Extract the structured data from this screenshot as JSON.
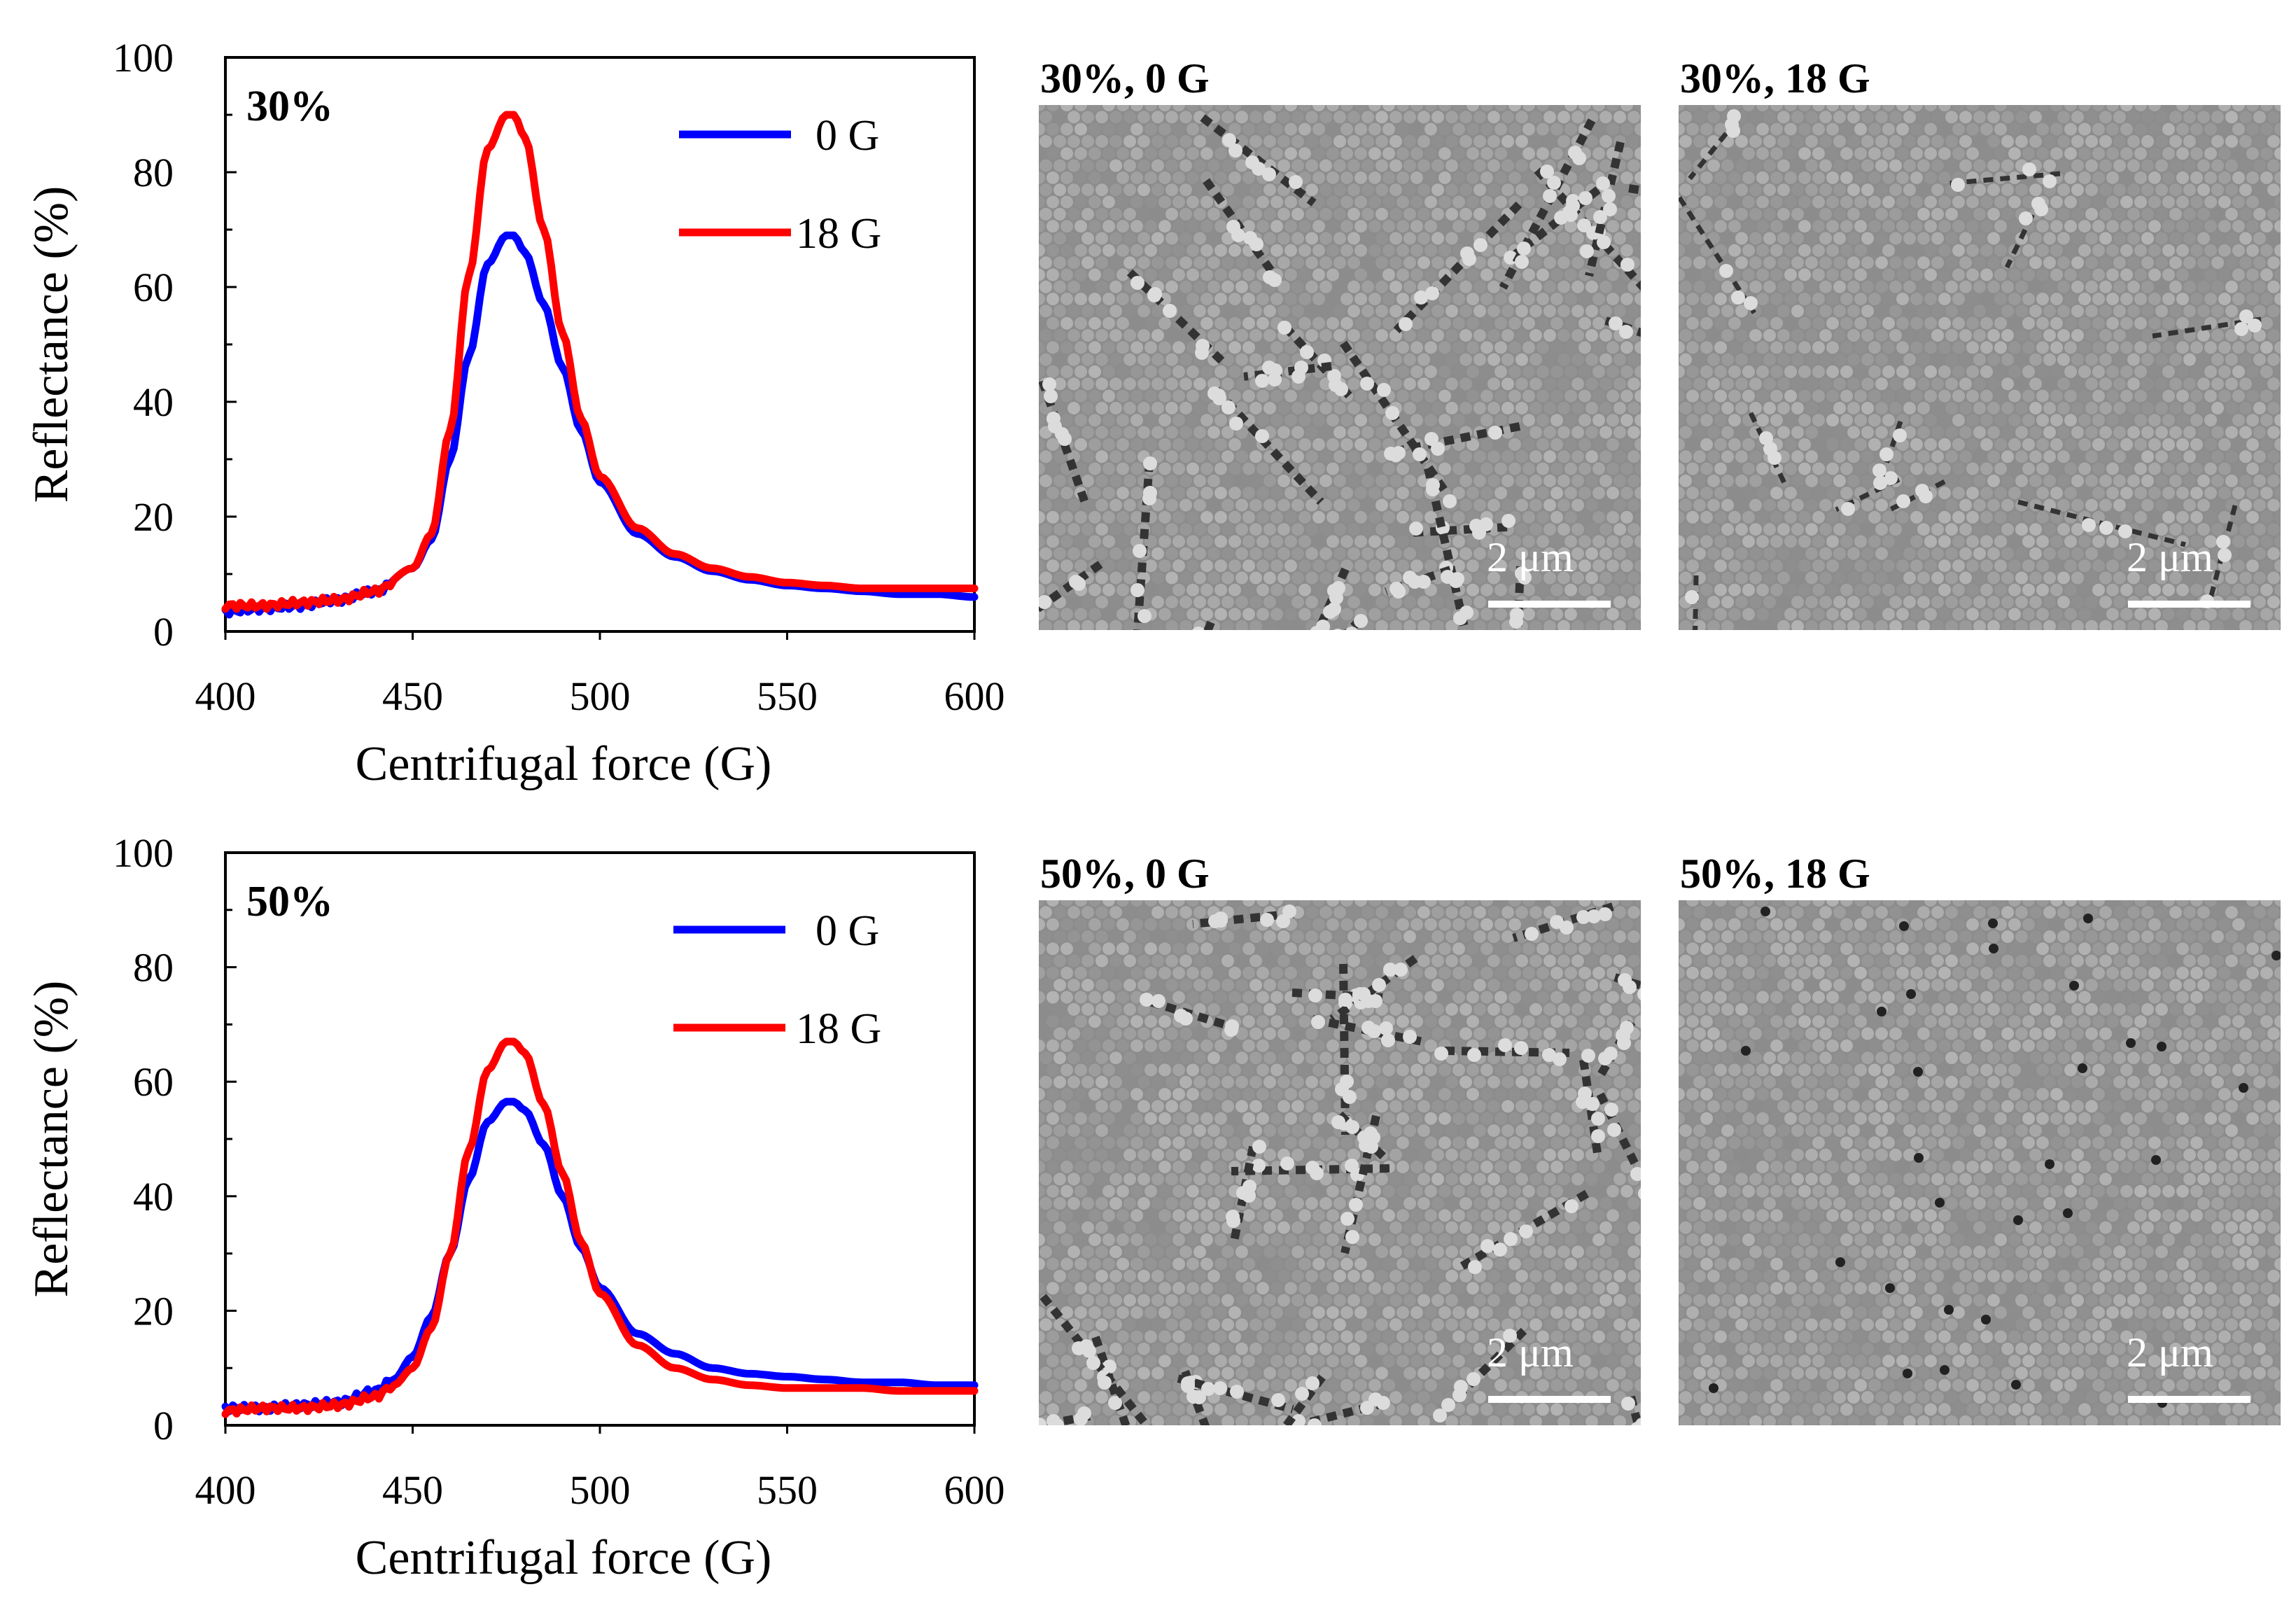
{
  "chart_data": [
    {
      "type": "line",
      "panel_label": "30%",
      "xlabel": "Centrifugal force (G)",
      "ylabel": "Reflectance (%)",
      "xlim": [
        400,
        600
      ],
      "ylim": [
        0,
        100
      ],
      "x_ticks": [
        "400",
        "450",
        "500",
        "550",
        "600"
      ],
      "y_ticks": [
        "0",
        "20",
        "40",
        "60",
        "80",
        "100"
      ],
      "legend_position": "top-right",
      "series": [
        {
          "name": "0 G",
          "color": "#0000ff",
          "x": [
            400,
            410,
            420,
            430,
            440,
            450,
            455,
            460,
            465,
            470,
            475,
            477,
            480,
            485,
            490,
            495,
            500,
            510,
            520,
            530,
            540,
            550,
            560,
            570,
            580,
            590,
            600
          ],
          "y": [
            3.5,
            4,
            4.5,
            5.5,
            7,
            11,
            16,
            30,
            48,
            64,
            69,
            69,
            66,
            57,
            46,
            35,
            26,
            17,
            13,
            10.5,
            9,
            8,
            7.5,
            7,
            6.5,
            6.5,
            6
          ]
        },
        {
          "name": "18 G",
          "color": "#ff0000",
          "x": [
            400,
            410,
            420,
            430,
            440,
            450,
            455,
            460,
            465,
            470,
            475,
            477,
            480,
            485,
            490,
            495,
            500,
            510,
            520,
            530,
            540,
            550,
            560,
            570,
            580,
            590,
            600
          ],
          "y": [
            4.5,
            4.5,
            5,
            5.5,
            7,
            11,
            17,
            35,
            62,
            84,
            90,
            90,
            86,
            70,
            52,
            37,
            27,
            18,
            13.5,
            11,
            9.5,
            8.5,
            8,
            7.5,
            7.5,
            7.5,
            7.5
          ]
        }
      ]
    },
    {
      "type": "line",
      "panel_label": "50%",
      "xlabel": "Centrifugal force (G)",
      "ylabel": "Reflectance (%)",
      "xlim": [
        400,
        600
      ],
      "ylim": [
        0,
        100
      ],
      "x_ticks": [
        "400",
        "450",
        "500",
        "550",
        "600"
      ],
      "y_ticks": [
        "0",
        "20",
        "40",
        "60",
        "80",
        "100"
      ],
      "legend_position": "top-right",
      "series": [
        {
          "name": "0 G",
          "color": "#0000ff",
          "x": [
            400,
            410,
            420,
            430,
            440,
            445,
            450,
            455,
            460,
            465,
            470,
            475,
            477,
            480,
            485,
            490,
            495,
            500,
            510,
            520,
            530,
            540,
            550,
            560,
            570,
            580,
            590,
            600
          ],
          "y": [
            3,
            3,
            3.5,
            4,
            6,
            8,
            12,
            19,
            30,
            43,
            53,
            56.5,
            56.5,
            55,
            49,
            40,
            31,
            24,
            16,
            12.5,
            10,
            9,
            8.5,
            8,
            7.5,
            7.5,
            7,
            7
          ]
        },
        {
          "name": "18 G",
          "color": "#ff0000",
          "x": [
            400,
            410,
            420,
            430,
            440,
            445,
            450,
            455,
            460,
            465,
            470,
            475,
            477,
            480,
            485,
            490,
            495,
            500,
            510,
            520,
            530,
            540,
            550,
            560,
            570,
            580,
            590,
            600
          ],
          "y": [
            2.5,
            3,
            3,
            3.5,
            5,
            7,
            10,
            17,
            30,
            48,
            62,
            67,
            67,
            65,
            56,
            44,
            32,
            23,
            14,
            10,
            8,
            7,
            6.5,
            6.5,
            6.5,
            6,
            6,
            6
          ]
        }
      ]
    }
  ],
  "sem_images": [
    {
      "label": "30%, 0 G",
      "scale_bar": "2 μm"
    },
    {
      "label": "30%, 18 G",
      "scale_bar": "2 μm"
    },
    {
      "label": "50%, 0 G",
      "scale_bar": "2 μm"
    },
    {
      "label": "50%, 18 G",
      "scale_bar": "2 μm"
    }
  ]
}
